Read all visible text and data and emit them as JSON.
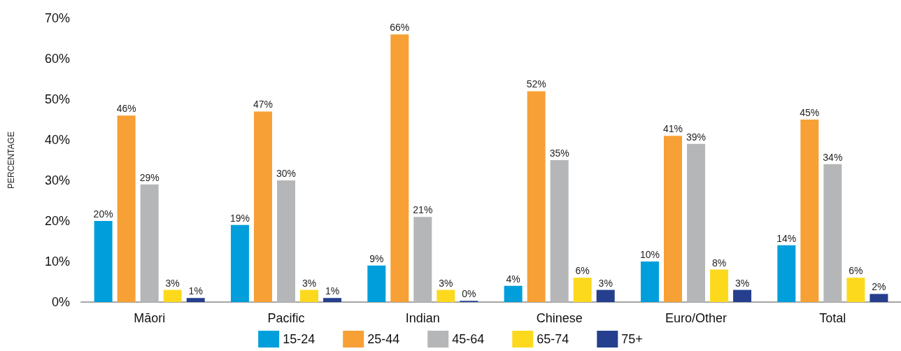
{
  "chart_data": {
    "type": "bar",
    "ylabel": "PERCENTAGE",
    "categories": [
      "Māori",
      "Pacific",
      "Indian",
      "Chinese",
      "Euro/Other",
      "Total"
    ],
    "series": [
      {
        "name": "15-24",
        "color": "#009fdb",
        "values": [
          20,
          19,
          9,
          4,
          10,
          14
        ],
        "value_labels": [
          "20%",
          "19%",
          "9%",
          "4%",
          "10%",
          "14%"
        ]
      },
      {
        "name": "25-44",
        "color": "#f7a035",
        "values": [
          46,
          47,
          66,
          52,
          41,
          45
        ],
        "value_labels": [
          "46%",
          "47%",
          "66%",
          "52%",
          "41%",
          "45%"
        ]
      },
      {
        "name": "45-64",
        "color": "#b5b6b8",
        "values": [
          29,
          30,
          21,
          35,
          39,
          34
        ],
        "value_labels": [
          "29%",
          "30%",
          "21%",
          "35%",
          "39%",
          "34%"
        ]
      },
      {
        "name": "65-74",
        "color": "#fdd91e",
        "values": [
          3,
          3,
          3,
          6,
          8,
          6
        ],
        "value_labels": [
          "3%",
          "3%",
          "3%",
          "6%",
          "8%",
          "6%"
        ]
      },
      {
        "name": "75+",
        "color": "#253f8e",
        "values": [
          1,
          1,
          0.3,
          3,
          3,
          2
        ],
        "value_labels": [
          "1%",
          "1%",
          "0%",
          "3%",
          "3%",
          "2%"
        ]
      }
    ],
    "ylim": [
      0,
      70
    ],
    "yticks": [
      {
        "value": 0,
        "label": "0%"
      },
      {
        "value": 10,
        "label": "10%"
      },
      {
        "value": 20,
        "label": "20%"
      },
      {
        "value": 30,
        "label": "30%"
      },
      {
        "value": 40,
        "label": "40%"
      },
      {
        "value": 50,
        "label": "50%"
      },
      {
        "value": 60,
        "label": "60%"
      },
      {
        "value": 70,
        "label": "70%"
      }
    ],
    "grid": false,
    "legend": "bottom"
  }
}
